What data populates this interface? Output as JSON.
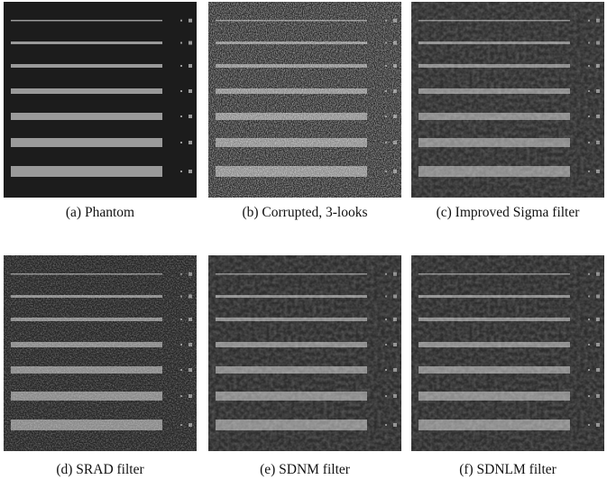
{
  "figure": {
    "panels": [
      {
        "caption": "(a) Phantom"
      },
      {
        "caption": "(b) Corrupted, 3-looks"
      },
      {
        "caption": "(c) Improved Sigma filter"
      },
      {
        "caption": "(d) SRAD filter"
      },
      {
        "caption": "(e) SDNM filter"
      },
      {
        "caption": "(f) SDNLM filter"
      }
    ]
  }
}
